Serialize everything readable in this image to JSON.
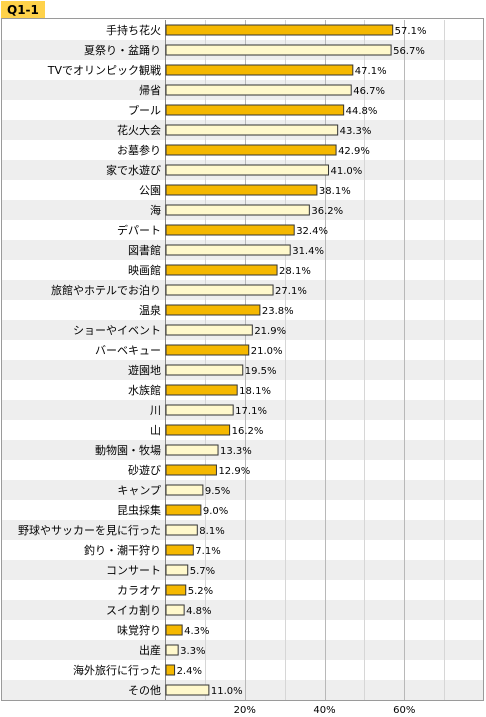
{
  "header": {
    "label": "Q1-1"
  },
  "colors": {
    "odd_bar": "#f5b800",
    "even_bar": "#fff8cc",
    "row_alt": "#eeeeee",
    "border": "#9a9a9a"
  },
  "chart_data": {
    "type": "bar",
    "orientation": "horizontal",
    "title": "",
    "xlabel": "",
    "ylabel": "",
    "xlim": [
      0,
      80
    ],
    "grid": true,
    "x_ticks": [
      "20%",
      "40%",
      "60%"
    ],
    "categories": [
      "手持ち花火",
      "夏祭り・盆踊り",
      "TVでオリンピック観戦",
      "帰省",
      "プール",
      "花火大会",
      "お墓参り",
      "家で水遊び",
      "公園",
      "海",
      "デパート",
      "図書館",
      "映画館",
      "旅館やホテルでお泊り",
      "温泉",
      "ショーやイベント",
      "バーベキュー",
      "遊園地",
      "水族館",
      "川",
      "山",
      "動物園・牧場",
      "砂遊び",
      "キャンプ",
      "昆虫採集",
      "野球やサッカーを見に行った",
      "釣り・潮干狩り",
      "コンサート",
      "カラオケ",
      "スイカ割り",
      "味覚狩り",
      "出産",
      "海外旅行に行った",
      "その他"
    ],
    "values": [
      57.1,
      56.7,
      47.1,
      46.7,
      44.8,
      43.3,
      42.9,
      41.0,
      38.1,
      36.2,
      32.4,
      31.4,
      28.1,
      27.1,
      23.8,
      21.9,
      21.0,
      19.5,
      18.1,
      17.1,
      16.2,
      13.3,
      12.9,
      9.5,
      9.0,
      8.1,
      7.1,
      5.7,
      5.2,
      4.8,
      4.3,
      3.3,
      2.4,
      11.0
    ],
    "value_labels": [
      "57.1%",
      "56.7%",
      "47.1%",
      "46.7%",
      "44.8%",
      "43.3%",
      "42.9%",
      "41.0%",
      "38.1%",
      "36.2%",
      "32.4%",
      "31.4%",
      "28.1%",
      "27.1%",
      "23.8%",
      "21.9%",
      "21.0%",
      "19.5%",
      "18.1%",
      "17.1%",
      "16.2%",
      "13.3%",
      "12.9%",
      "9.5%",
      "9.0%",
      "8.1%",
      "7.1%",
      "5.7%",
      "5.2%",
      "4.8%",
      "4.3%",
      "3.3%",
      "2.4%",
      "11.0%"
    ]
  }
}
